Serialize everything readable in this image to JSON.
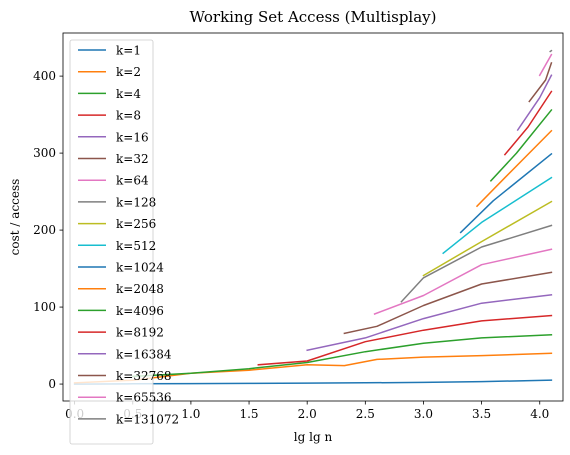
{
  "chart_data": {
    "type": "line",
    "title": "Working Set Access (Multisplay)",
    "xlabel": "lg lg n",
    "ylabel": "cost / access",
    "xlim": [
      -0.1,
      4.2
    ],
    "ylim": [
      -22,
      456
    ],
    "xticks": [
      0.0,
      0.5,
      1.0,
      1.5,
      2.0,
      2.5,
      3.0,
      3.5,
      4.0
    ],
    "xtick_labels": [
      "0.0",
      "0.5",
      "1.0",
      "1.5",
      "2.0",
      "2.5",
      "3.0",
      "3.5",
      "4.0"
    ],
    "yticks": [
      0,
      100,
      200,
      300,
      400
    ],
    "ytick_labels": [
      "0",
      "100",
      "200",
      "300",
      "400"
    ],
    "grid": false,
    "legend": "upper-left",
    "colors": [
      "#1f77b4",
      "#ff7f0e",
      "#2ca02c",
      "#d62728",
      "#9467bd",
      "#8c564b",
      "#e377c2",
      "#7f7f7f",
      "#bcbd22",
      "#17becf"
    ],
    "series": [
      {
        "name": "k=1",
        "x": [
          0.0,
          0.5,
          1.0,
          1.5,
          2.0,
          2.5,
          3.0,
          3.5,
          4.1
        ],
        "y": [
          0,
          0.3,
          0.6,
          0.9,
          1.2,
          1.6,
          2.2,
          3.2,
          5
        ]
      },
      {
        "name": "k=2",
        "x": [
          0.0,
          0.5,
          1.0,
          1.5,
          2.0,
          2.32,
          2.6,
          3.0,
          3.5,
          4.1
        ],
        "y": [
          1.5,
          5,
          14,
          18,
          25,
          24,
          32,
          35,
          37,
          40
        ]
      },
      {
        "name": "k=4",
        "x": [
          0.5,
          1.0,
          1.5,
          2.0,
          2.5,
          3.0,
          3.5,
          4.1
        ],
        "y": [
          10,
          14,
          20,
          28,
          42,
          53,
          60,
          64
        ]
      },
      {
        "name": "k=8",
        "x": [
          1.58,
          2.0,
          2.5,
          3.0,
          3.5,
          4.1
        ],
        "y": [
          25,
          30,
          55,
          70,
          82,
          89
        ]
      },
      {
        "name": "k=16",
        "x": [
          2.0,
          2.5,
          3.0,
          3.5,
          4.1
        ],
        "y": [
          44,
          60,
          85,
          105,
          116
        ]
      },
      {
        "name": "k=32",
        "x": [
          2.32,
          2.6,
          3.0,
          3.5,
          4.1
        ],
        "y": [
          66,
          75,
          102,
          130,
          145
        ]
      },
      {
        "name": "k=64",
        "x": [
          2.58,
          3.0,
          3.5,
          4.1
        ],
        "y": [
          91,
          115,
          155,
          175
        ]
      },
      {
        "name": "k=128",
        "x": [
          2.81,
          3.0,
          3.5,
          4.1
        ],
        "y": [
          107,
          138,
          178,
          206
        ]
      },
      {
        "name": "k=256",
        "x": [
          3.0,
          3.5,
          4.1
        ],
        "y": [
          141,
          185,
          237
        ]
      },
      {
        "name": "k=512",
        "x": [
          3.17,
          3.5,
          4.1
        ],
        "y": [
          170,
          210,
          268
        ]
      },
      {
        "name": "k=1024",
        "x": [
          3.32,
          3.6,
          4.1
        ],
        "y": [
          197,
          238,
          299
        ]
      },
      {
        "name": "k=2048",
        "x": [
          3.46,
          3.7,
          4.1
        ],
        "y": [
          231,
          268,
          329
        ]
      },
      {
        "name": "k=4096",
        "x": [
          3.58,
          3.8,
          4.1
        ],
        "y": [
          264,
          300,
          356
        ]
      },
      {
        "name": "k=8192",
        "x": [
          3.7,
          3.9,
          4.1
        ],
        "y": [
          298,
          334,
          380
        ]
      },
      {
        "name": "k=16384",
        "x": [
          3.81,
          4.0,
          4.1
        ],
        "y": [
          330,
          372,
          401
        ]
      },
      {
        "name": "k=32768",
        "x": [
          3.91,
          4.05,
          4.1
        ],
        "y": [
          367,
          395,
          417
        ]
      },
      {
        "name": "k=65536",
        "x": [
          4.0,
          4.1
        ],
        "y": [
          401,
          428
        ]
      },
      {
        "name": "k=131072",
        "x": [
          4.09,
          4.1
        ],
        "y": [
          432,
          433
        ]
      }
    ]
  }
}
